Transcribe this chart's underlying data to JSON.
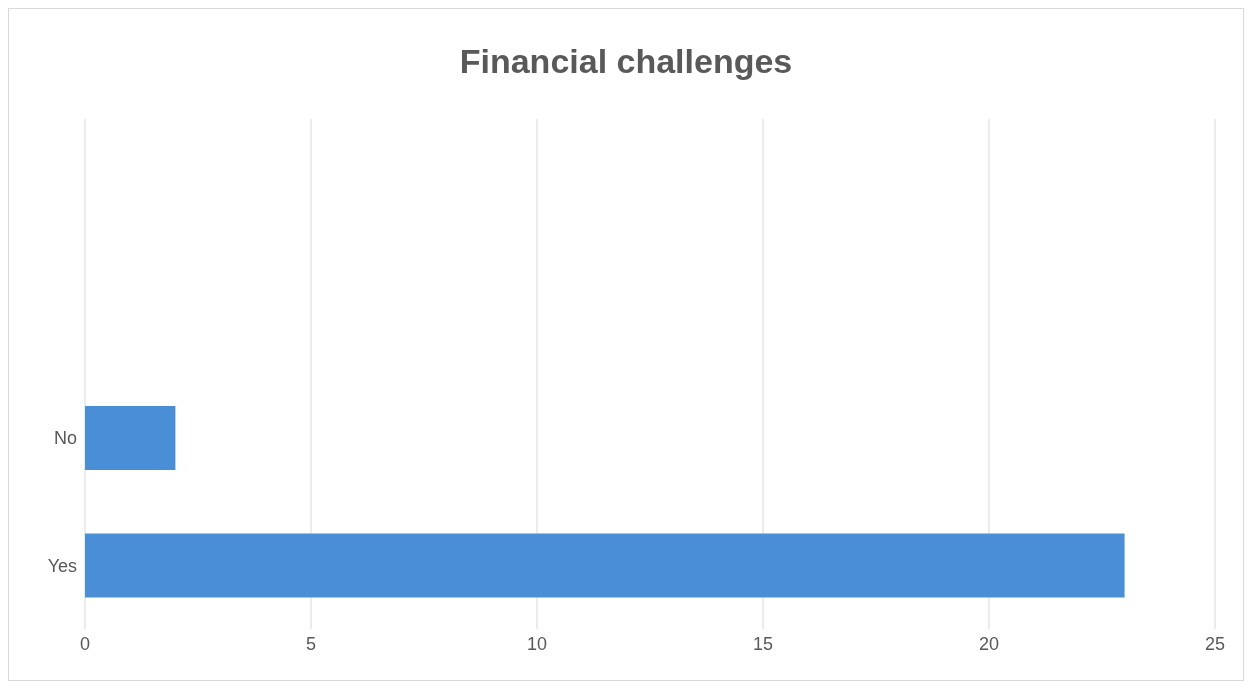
{
  "chart_data": {
    "type": "bar",
    "orientation": "horizontal",
    "title": "Financial challenges",
    "categories": [
      null,
      null,
      "No",
      "Yes"
    ],
    "values": [
      null,
      null,
      2,
      23
    ],
    "color": "#4a8fd6",
    "xlim": [
      0,
      25
    ],
    "xticks": [
      0,
      5,
      10,
      15,
      20,
      25
    ],
    "grid": "x",
    "legend": false
  }
}
